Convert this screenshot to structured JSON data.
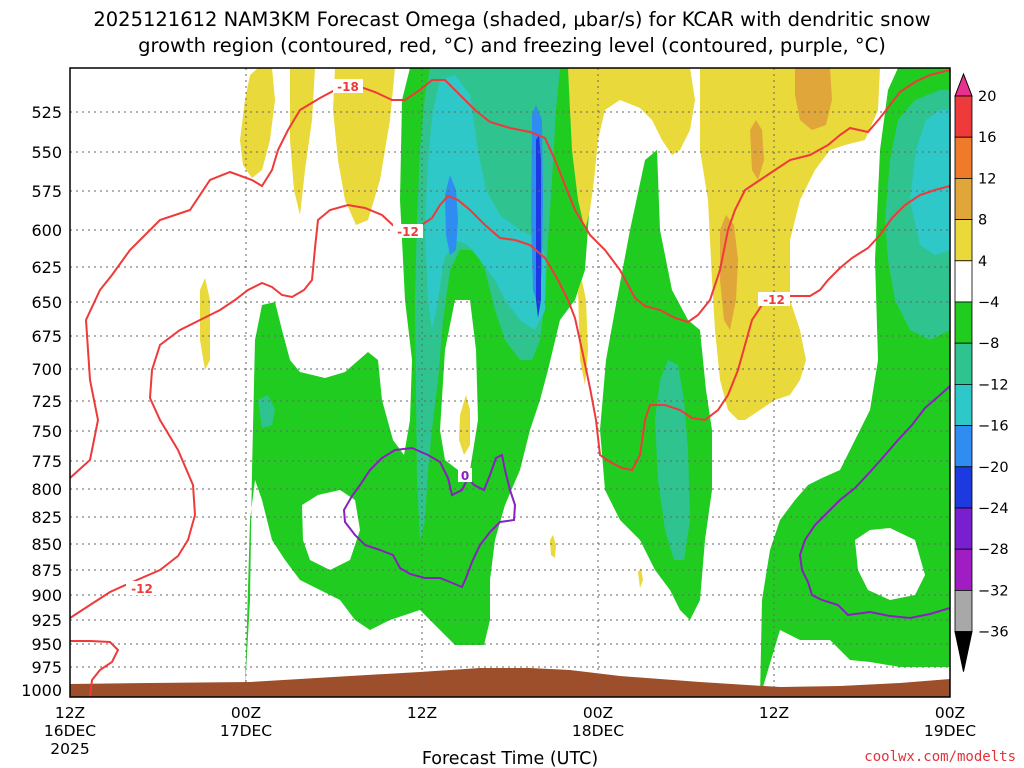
{
  "title_line1": "2025121612 NAM3KM Forecast Omega (shaded, μbar/s) for KCAR with dendritic snow",
  "title_line2": "growth region (contoured, red, °C) and freezing level (contoured, purple, °C)",
  "credit": "coolwx.com/modelts",
  "colors": {
    "dgz_contour": "#ee3a3a",
    "freezing_contour": "#8a1fbf",
    "ground": "#9c4f2a",
    "grid": "#777777"
  },
  "chart_data": {
    "type": "heatmap",
    "xlabel": "Forecast Time (UTC)",
    "x_ticks": [
      {
        "label1": "12Z",
        "label2": "16DEC",
        "label3": "2025"
      },
      {
        "label1": "00Z",
        "label2": "17DEC"
      },
      {
        "label1": "12Z",
        "label2": ""
      },
      {
        "label1": "00Z",
        "label2": "18DEC"
      },
      {
        "label1": "12Z",
        "label2": ""
      },
      {
        "label1": "00Z",
        "label2": "19DEC"
      }
    ],
    "y_ticks": [
      "525",
      "550",
      "575",
      "600",
      "625",
      "650",
      "675",
      "700",
      "725",
      "750",
      "775",
      "800",
      "825",
      "850",
      "875",
      "900",
      "925",
      "950",
      "975",
      "1000"
    ],
    "y_values": [
      525,
      550,
      575,
      600,
      625,
      650,
      675,
      700,
      725,
      750,
      775,
      800,
      825,
      850,
      875,
      900,
      925,
      950,
      975,
      1000
    ],
    "ylim_hpa": [
      1000,
      500
    ],
    "xlim_hours": [
      0,
      60
    ],
    "grid": true,
    "colorbar": {
      "labels": [
        "20",
        "16",
        "12",
        "8",
        "4",
        "−4",
        "−8",
        "−12",
        "−16",
        "−20",
        "−24",
        "−28",
        "−32",
        "−36"
      ],
      "bins": [
        {
          "range": ">20",
          "color": "#e8318f"
        },
        {
          "range": "16 to 20",
          "color": "#ee3a3a"
        },
        {
          "range": "12 to 16",
          "color": "#ef7a2a"
        },
        {
          "range": "8 to 12",
          "color": "#e0a63a"
        },
        {
          "range": "4 to 8",
          "color": "#e9d93a"
        },
        {
          "range": "-4 to 4",
          "color": "#ffffff"
        },
        {
          "range": "-8 to -4",
          "color": "#21cc21"
        },
        {
          "range": "-12 to -8",
          "color": "#2fc48f"
        },
        {
          "range": "-16 to -12",
          "color": "#2ec8c8"
        },
        {
          "range": "-20 to -16",
          "color": "#2f8cf0"
        },
        {
          "range": "-24 to -20",
          "color": "#1d3ae0"
        },
        {
          "range": "-28 to -24",
          "color": "#7a1fd0"
        },
        {
          "range": "-32 to -28",
          "color": "#a01dc4"
        },
        {
          "range": "-36 to -32",
          "color": "#a8a8a8"
        },
        {
          "range": "<-36",
          "color": "#000000"
        }
      ]
    },
    "contour_labels": {
      "dgz": [
        "-18",
        "-12",
        "-12",
        "-12"
      ],
      "freezing": [
        "0"
      ]
    }
  }
}
